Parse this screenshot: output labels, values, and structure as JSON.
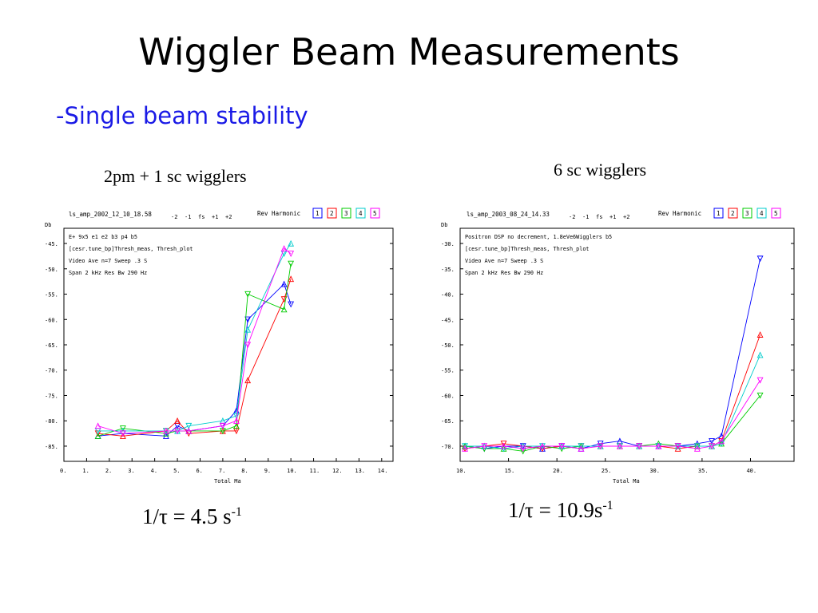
{
  "slide": {
    "title": "Wiggler Beam Measurements",
    "subtitle": "-Single beam stability"
  },
  "left": {
    "caption": "2pm + 1 sc wigglers",
    "formula_prefix": "1/τ = 4.5 s",
    "formula_sup": "-1"
  },
  "right": {
    "caption": "6 sc wigglers",
    "formula_prefix": "1/τ = 10.9s",
    "formula_sup": "-1"
  },
  "chart_data": [
    {
      "type": "line",
      "header": "ls_amp_2002_12_10_18.58",
      "harmonic_label": "Rev Harmonic",
      "harmonics": [
        "1",
        "2",
        "3",
        "4",
        "5"
      ],
      "legend_symbols": [
        "-2",
        "-1",
        "fs",
        "+1",
        "+2"
      ],
      "info_lines": [
        "E+ 9x5                         e1  e2  b3  p4  b5",
        "[cesr.tune_bp]Thresh_meas, Thresh_plot",
        "Video Ave n=7   Sweep .3 S",
        "Span 2 kHz   Res Bw 290 Hz"
      ],
      "ylabel": "Db",
      "xlabel": "Total Ma",
      "xlim": [
        0,
        14.5
      ],
      "ylim": [
        -88,
        -42
      ],
      "xticks": [
        "0.",
        "1.",
        "2.",
        "3.",
        "4.",
        "5.",
        "6.",
        "7.",
        "8.",
        "9.",
        "10.",
        "11.",
        "12.",
        "13.",
        "14."
      ],
      "yticks": [
        "-45.",
        "-50.",
        "-55.",
        "-60.",
        "-65.",
        "-70.",
        "-75.",
        "-80.",
        "-85."
      ],
      "series": [
        {
          "name": "1",
          "color": "#0000ff",
          "x": [
            1.5,
            2.6,
            4.5,
            5.0,
            5.5,
            7.0,
            7.6,
            8.1,
            9.7,
            10.0
          ],
          "y": [
            -83,
            -82.5,
            -83,
            -81,
            -82,
            -81,
            -78,
            -60,
            -53,
            -57
          ]
        },
        {
          "name": "2",
          "color": "#ff0000",
          "x": [
            1.5,
            2.6,
            4.5,
            5.0,
            5.5,
            7.0,
            7.6,
            8.1,
            9.7,
            10.0
          ],
          "y": [
            -82.5,
            -83,
            -82,
            -80,
            -82.5,
            -82,
            -82,
            -72,
            -56,
            -52
          ]
        },
        {
          "name": "3",
          "color": "#00cc00",
          "x": [
            1.5,
            2.6,
            4.5,
            5.0,
            5.5,
            7.0,
            7.6,
            8.1,
            9.7,
            10.0
          ],
          "y": [
            -83,
            -81.5,
            -82.5,
            -82,
            -82,
            -82,
            -81,
            -55,
            -58,
            -49
          ]
        },
        {
          "name": "4",
          "color": "#00cccc",
          "x": [
            1.5,
            2.6,
            4.5,
            5.0,
            5.5,
            7.0,
            7.6,
            8.1,
            9.7,
            10.0
          ],
          "y": [
            -82,
            -82,
            -82,
            -82,
            -81,
            -80,
            -79,
            -62,
            -47,
            -45
          ]
        },
        {
          "name": "5",
          "color": "#ff00ff",
          "x": [
            1.5,
            2.6,
            4.5,
            5.0,
            5.5,
            7.0,
            7.6,
            8.1,
            9.7,
            10.0
          ],
          "y": [
            -81,
            -82.5,
            -82,
            -82,
            -82,
            -81,
            -80,
            -65,
            -46,
            -47
          ]
        }
      ]
    },
    {
      "type": "line",
      "header": "ls_amp_2003_08_24_14.33",
      "harmonic_label": "Rev Harmonic",
      "harmonics": [
        "1",
        "2",
        "3",
        "4",
        "5"
      ],
      "legend_symbols": [
        "-2",
        "-1",
        "fs",
        "+1",
        "+2"
      ],
      "info_lines": [
        "Positron DSP no decrement, 1.8eVe6Wigglers   b5",
        "[cesr.tune_bp]Thresh_meas, Thresh_plot",
        "Video Ave n=7   Sweep .3 S",
        "Span 2 kHz   Res Bw 290 Hz"
      ],
      "ylabel": "Db",
      "xlabel": "Total Ma",
      "xlim": [
        10,
        44.5
      ],
      "ylim": [
        -73,
        -27
      ],
      "xticks": [
        "10.",
        "15.",
        "20.",
        "25.",
        "30.",
        "35.",
        "40."
      ],
      "yticks": [
        "-30.",
        "-35.",
        "-40.",
        "-45.",
        "-50.",
        "-55.",
        "-60.",
        "-65.",
        "-70."
      ],
      "series": [
        {
          "name": "1",
          "color": "#0000ff",
          "x": [
            10.5,
            12.5,
            14.5,
            16.5,
            18.5,
            20.5,
            22.5,
            24.5,
            26.5,
            28.5,
            30.5,
            32.5,
            34.5,
            36.0,
            37.0,
            41.0
          ],
          "y": [
            -70,
            -70.5,
            -70,
            -70,
            -70.5,
            -70,
            -70.5,
            -69.5,
            -69,
            -70,
            -70,
            -70,
            -69.5,
            -69,
            -68,
            -33
          ]
        },
        {
          "name": "2",
          "color": "#ff0000",
          "x": [
            10.5,
            12.5,
            14.5,
            16.5,
            18.5,
            20.5,
            22.5,
            24.5,
            26.5,
            28.5,
            30.5,
            32.5,
            34.5,
            36.0,
            37.0,
            41.0
          ],
          "y": [
            -70.5,
            -70,
            -69.5,
            -70,
            -70.5,
            -70,
            -70,
            -70,
            -70,
            -70,
            -70,
            -70.5,
            -70,
            -70,
            -69,
            -48
          ]
        },
        {
          "name": "3",
          "color": "#00cc00",
          "x": [
            10.5,
            12.5,
            14.5,
            16.5,
            18.5,
            20.5,
            22.5,
            24.5,
            26.5,
            28.5,
            30.5,
            32.5,
            34.5,
            36.0,
            37.0,
            41.0
          ],
          "y": [
            -70,
            -70.5,
            -70.5,
            -71,
            -70,
            -70.5,
            -70,
            -70,
            -70,
            -70,
            -69.5,
            -70,
            -70,
            -70,
            -69.5,
            -60
          ]
        },
        {
          "name": "4",
          "color": "#00cccc",
          "x": [
            10.5,
            12.5,
            14.5,
            16.5,
            18.5,
            20.5,
            22.5,
            24.5,
            26.5,
            28.5,
            30.5,
            32.5,
            34.5,
            36.0,
            37.0,
            41.0
          ],
          "y": [
            -70,
            -70,
            -70.5,
            -70,
            -70,
            -70,
            -70,
            -70,
            -70,
            -70,
            -70,
            -70,
            -70,
            -70,
            -69.5,
            -52
          ]
        },
        {
          "name": "5",
          "color": "#ff00ff",
          "x": [
            10.5,
            12.5,
            14.5,
            16.5,
            18.5,
            20.5,
            22.5,
            24.5,
            26.5,
            28.5,
            30.5,
            32.5,
            34.5,
            36.0,
            37.0,
            41.0
          ],
          "y": [
            -70.5,
            -70,
            -70,
            -70.5,
            -70,
            -70,
            -70.5,
            -70,
            -70,
            -70,
            -70,
            -70,
            -70.5,
            -70,
            -69,
            -57
          ]
        }
      ]
    }
  ]
}
